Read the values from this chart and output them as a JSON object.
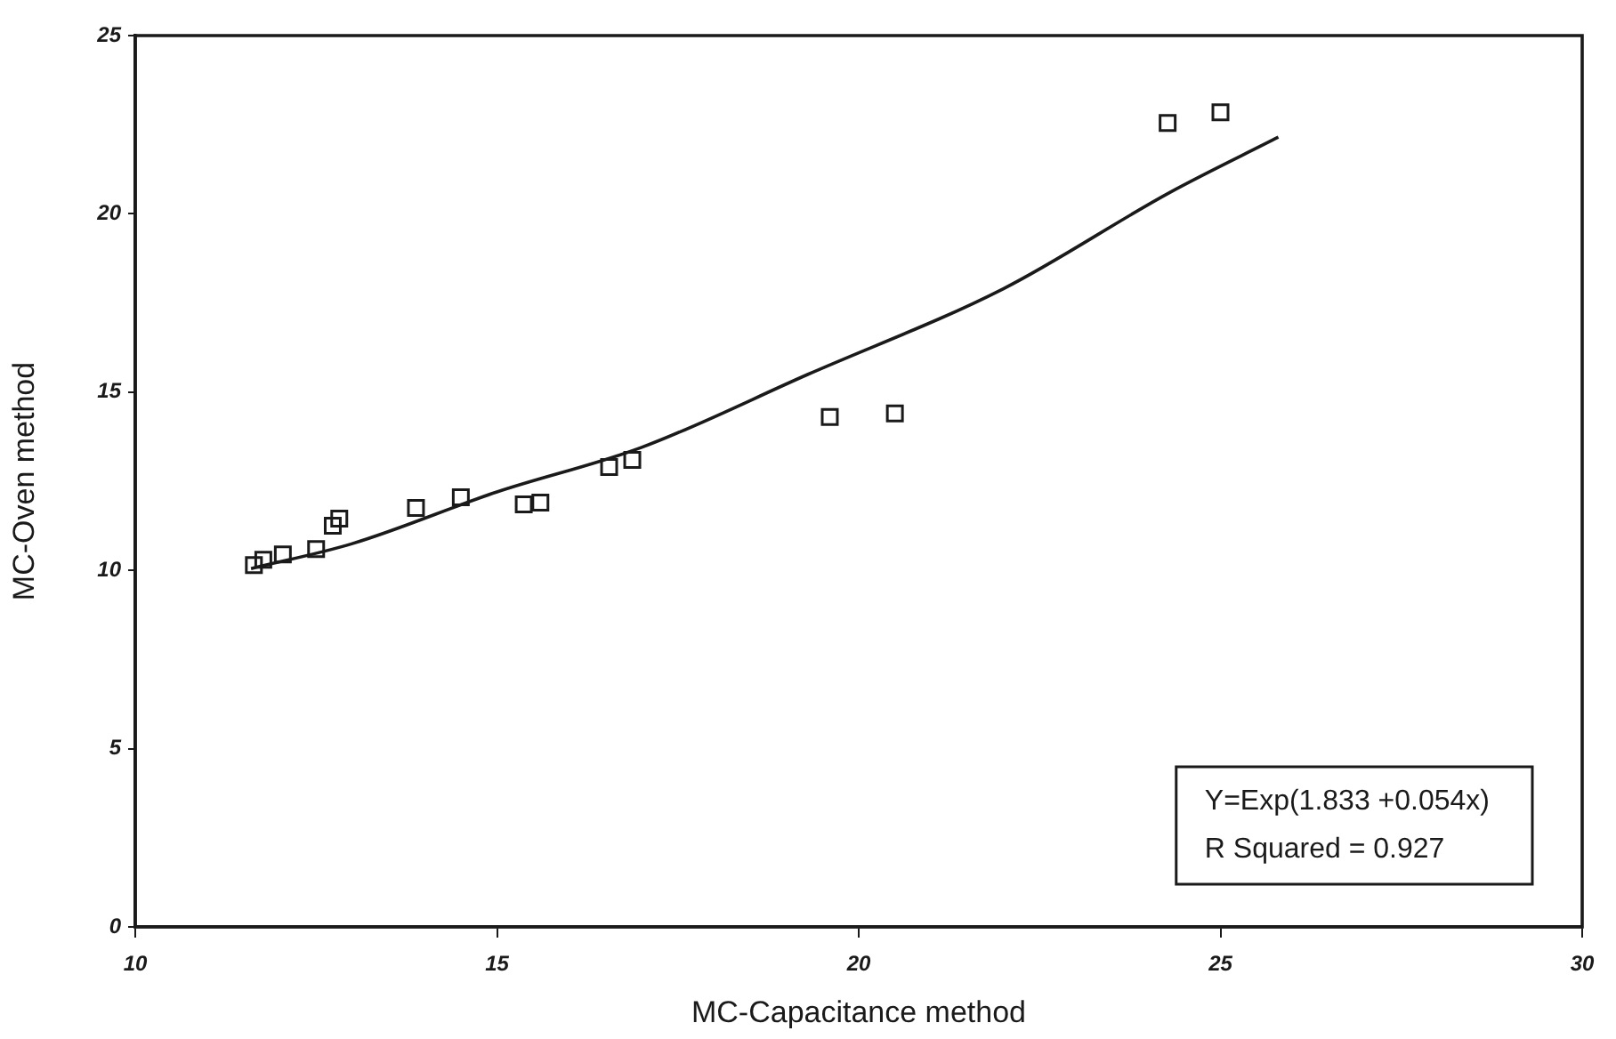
{
  "chart_data": {
    "type": "scatter",
    "xlabel": "MC-Capacitance method",
    "ylabel": "MC-Oven method",
    "x": [
      11.64,
      11.77,
      12.04,
      12.5,
      12.73,
      12.82,
      13.88,
      14.5,
      15.37,
      15.6,
      16.55,
      16.87,
      19.6,
      20.5,
      24.27,
      25.0
    ],
    "values": [
      10.15,
      10.3,
      10.45,
      10.6,
      11.25,
      11.45,
      11.75,
      12.05,
      11.85,
      11.9,
      12.9,
      13.1,
      14.3,
      14.4,
      22.55,
      22.85
    ],
    "color": "#1a1a1a",
    "marker": "square",
    "series": [
      {
        "type": "line",
        "color": "#1a1a1a",
        "marker": "none",
        "x": [
          11.6,
          13,
          15,
          17,
          19.3,
          22,
          24.3,
          25.8
        ],
        "values": [
          10.05,
          10.75,
          12.2,
          13.45,
          15.5,
          17.9,
          20.6,
          22.15
        ]
      }
    ],
    "xlim": [
      10,
      30
    ],
    "xticks": [
      10,
      15,
      20,
      25,
      30
    ],
    "ylim": [
      0,
      25
    ],
    "yticks": [
      0,
      5,
      10,
      15,
      20,
      25
    ],
    "grid": false,
    "legend": false,
    "annotations": [
      "Y=Exp(1.833 +0.054x)",
      "R Squared = 0.927"
    ]
  }
}
